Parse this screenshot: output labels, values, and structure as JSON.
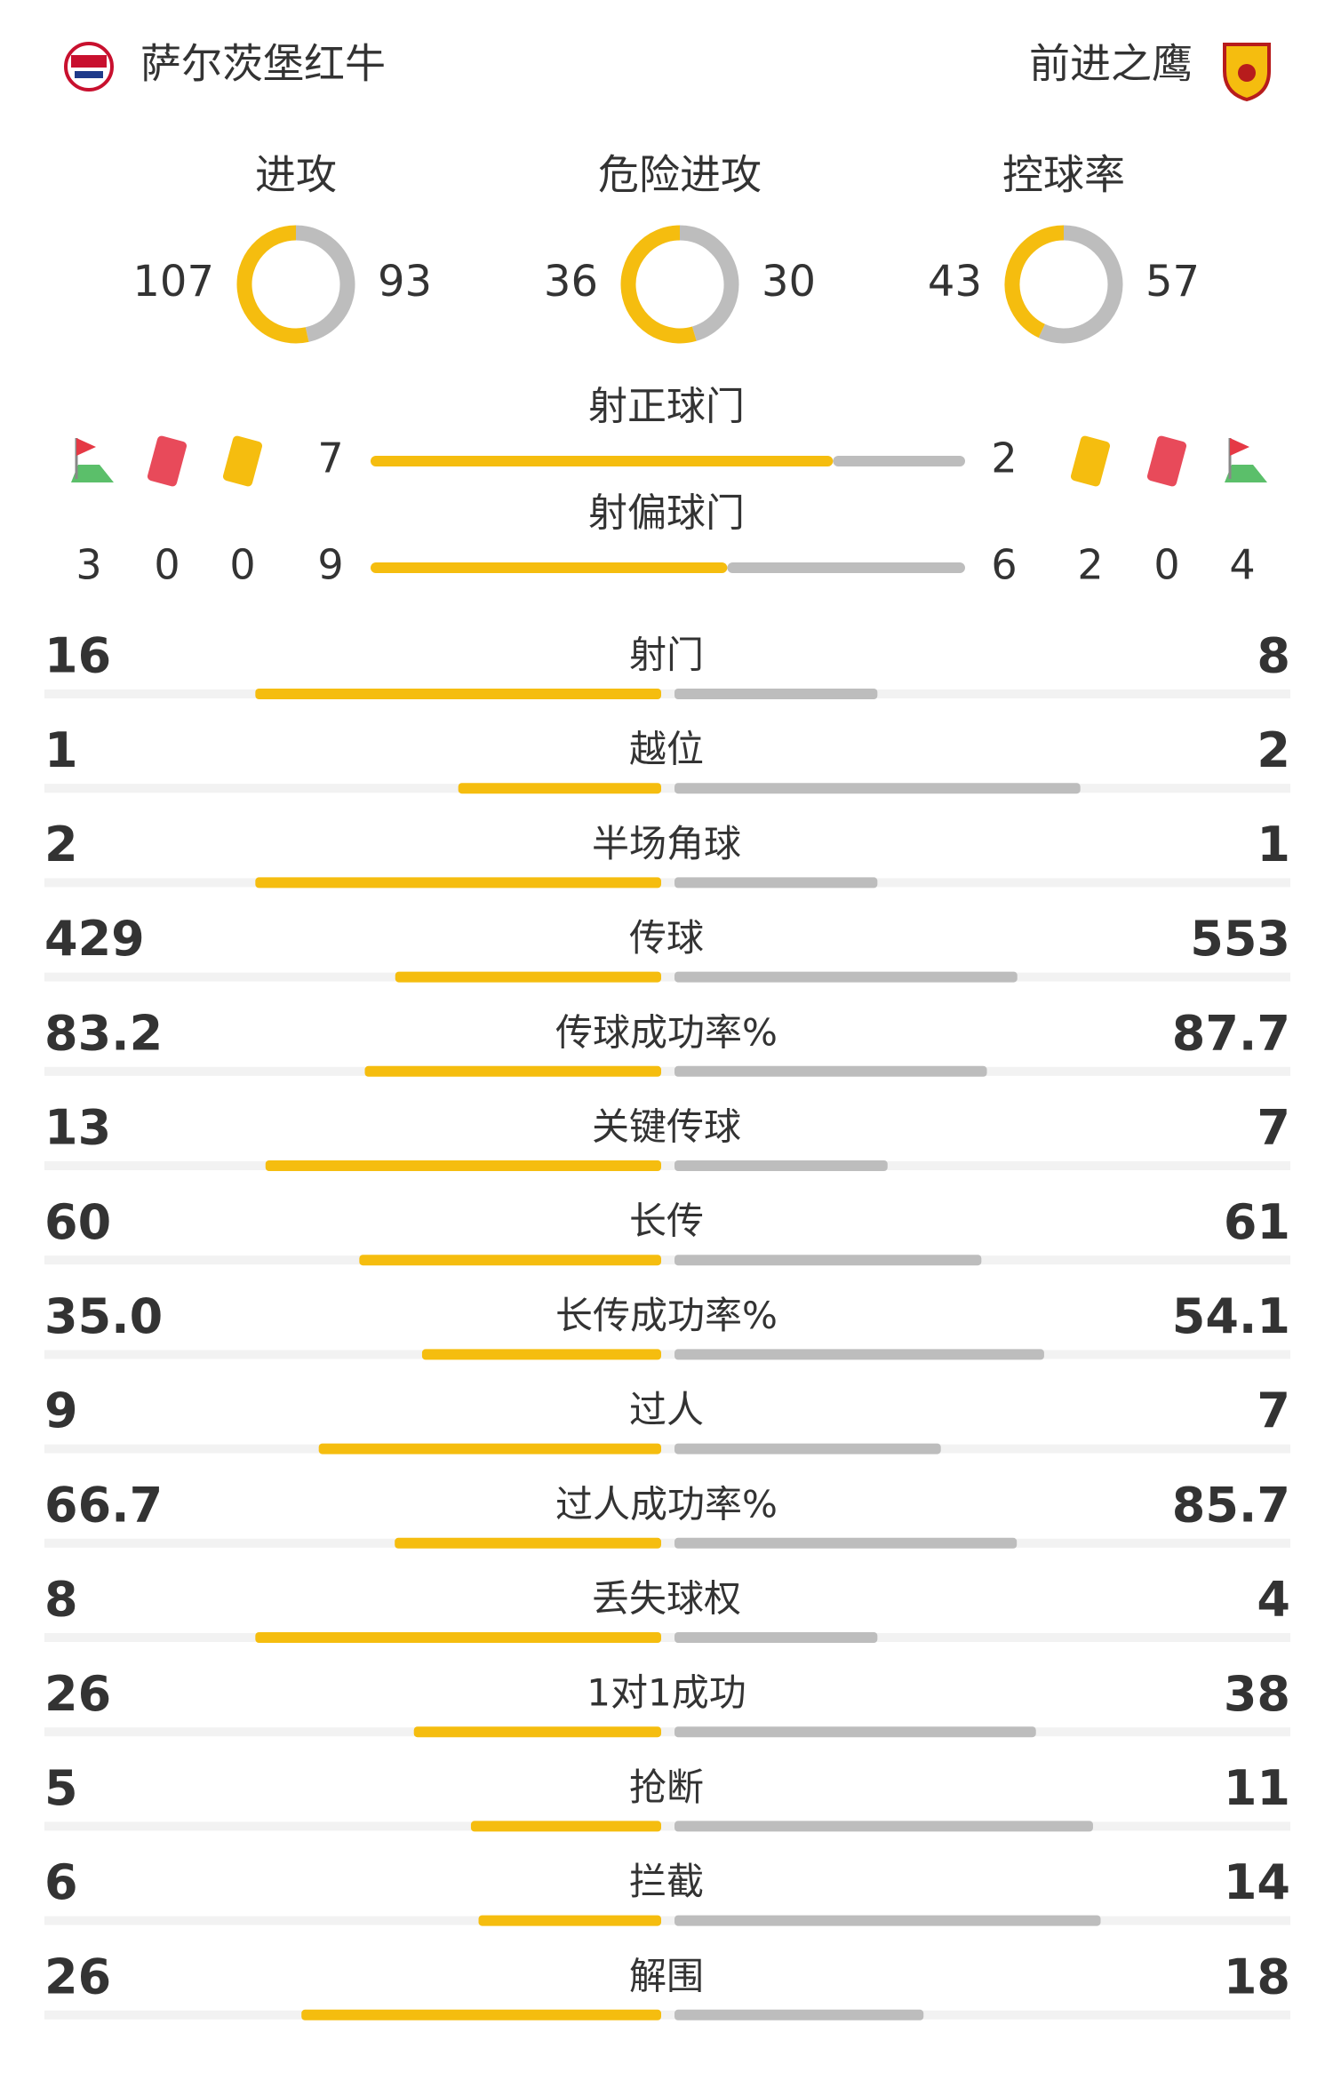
{
  "home": {
    "name": "萨尔茨堡红牛",
    "corners": 3,
    "red_cards": 0,
    "yellow_cards": 0
  },
  "away": {
    "name": "前进之鹰",
    "yellow_cards": 2,
    "red_cards": 0,
    "corners": 4
  },
  "donuts": [
    {
      "label": "进攻",
      "home": 107,
      "away": 93
    },
    {
      "label": "危险进攻",
      "home": 36,
      "away": 30
    },
    {
      "label": "控球率",
      "home": 43,
      "away": 57
    }
  ],
  "shots": [
    {
      "label": "射正球门",
      "home": 7,
      "away": 2
    },
    {
      "label": "射偏球门",
      "home": 9,
      "away": 6
    }
  ],
  "stats": [
    {
      "label": "射门",
      "home": 16,
      "away": 8
    },
    {
      "label": "越位",
      "home": 1,
      "away": 2
    },
    {
      "label": "半场角球",
      "home": 2,
      "away": 1
    },
    {
      "label": "传球",
      "home": 429,
      "away": 553
    },
    {
      "label": "传球成功率%",
      "home": 83.2,
      "away": 87.7
    },
    {
      "label": "关键传球",
      "home": 13,
      "away": 7
    },
    {
      "label": "长传",
      "home": 60,
      "away": 61
    },
    {
      "label": "长传成功率%",
      "home": {
        "value": 35,
        "label": "35.0"
      },
      "away": 54.1
    },
    {
      "label": "过人",
      "home": 9,
      "away": 7
    },
    {
      "label": "过人成功率%",
      "home": 66.7,
      "away": 85.7
    },
    {
      "label": "丢失球权",
      "home": 8,
      "away": 4
    },
    {
      "label": "1对1成功",
      "home": 26,
      "away": 38
    },
    {
      "label": "抢断",
      "home": 5,
      "away": 11
    },
    {
      "label": "拦截",
      "home": 6,
      "away": 14
    },
    {
      "label": "解围",
      "home": 26,
      "away": 18
    }
  ]
}
